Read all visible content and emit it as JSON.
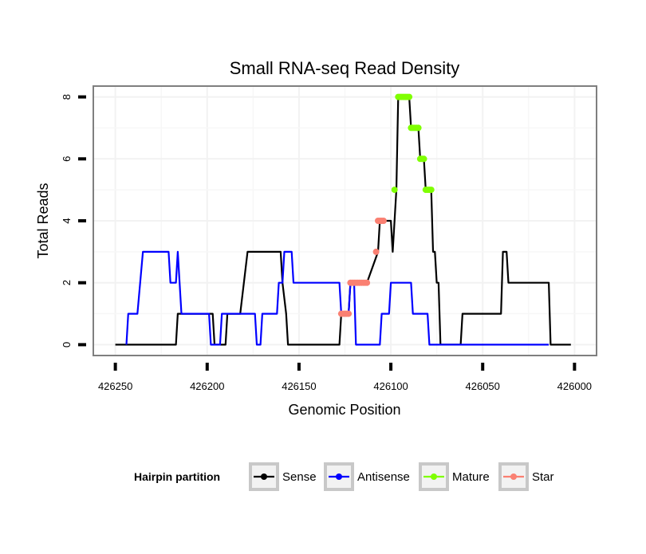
{
  "chart_data": {
    "type": "line",
    "title": "Small RNA-seq Read Density",
    "xlabel": "Genomic Position",
    "ylabel": "Total Reads",
    "x_reversed": true,
    "xlim": [
      426262,
      425988
    ],
    "ylim": [
      -0.35,
      8.35
    ],
    "xticks": [
      426250,
      426200,
      426150,
      426100,
      426050,
      426000
    ],
    "xtick_labels": [
      "426250",
      "426200",
      "426150",
      "426100",
      "426050",
      "426000"
    ],
    "yticks": [
      0,
      2,
      4,
      6,
      8
    ],
    "ytick_labels": [
      "0",
      "2",
      "4",
      "6",
      "8"
    ],
    "grid": true,
    "legend": {
      "title": "Hairpin partition",
      "placement": "bottom",
      "entries": [
        {
          "name": "Sense",
          "color": "#000000"
        },
        {
          "name": "Antisense",
          "color": "#0000ff"
        },
        {
          "name": "Mature",
          "color": "#7fff00"
        },
        {
          "name": "Star",
          "color": "#fa8072"
        }
      ]
    },
    "series": [
      {
        "name": "Sense",
        "color": "#000000",
        "style": "line",
        "points": [
          [
            426250,
            0
          ],
          [
            426217,
            0
          ],
          [
            426216,
            1
          ],
          [
            426197,
            1
          ],
          [
            426196,
            0
          ],
          [
            426190,
            0
          ],
          [
            426189,
            1
          ],
          [
            426182,
            1
          ],
          [
            426180,
            2
          ],
          [
            426178,
            3
          ],
          [
            426160,
            3
          ],
          [
            426159,
            2
          ],
          [
            426157,
            1
          ],
          [
            426156,
            0
          ],
          [
            426128,
            0
          ],
          [
            426127,
            1
          ],
          [
            426123,
            1
          ],
          [
            426122,
            2
          ],
          [
            426113,
            2
          ],
          [
            426107,
            3
          ],
          [
            426106,
            4
          ],
          [
            426100,
            4
          ],
          [
            426099,
            3
          ],
          [
            426097,
            5
          ],
          [
            426096,
            8
          ],
          [
            426090,
            8
          ],
          [
            426089,
            7
          ],
          [
            426085,
            7
          ],
          [
            426084,
            6
          ],
          [
            426082,
            6
          ],
          [
            426081,
            5
          ],
          [
            426078,
            5
          ],
          [
            426077,
            3
          ],
          [
            426076,
            3
          ],
          [
            426075,
            2
          ],
          [
            426074,
            2
          ],
          [
            426073,
            0
          ],
          [
            426062,
            0
          ],
          [
            426061,
            1
          ],
          [
            426040,
            1
          ],
          [
            426039,
            3
          ],
          [
            426037,
            3
          ],
          [
            426036,
            2
          ],
          [
            426014,
            2
          ],
          [
            426013,
            0
          ],
          [
            426002,
            0
          ]
        ]
      },
      {
        "name": "Antisense",
        "color": "#0000ff",
        "style": "line",
        "points": [
          [
            426244,
            0
          ],
          [
            426243,
            1
          ],
          [
            426238,
            1
          ],
          [
            426235,
            3
          ],
          [
            426221,
            3
          ],
          [
            426220,
            2
          ],
          [
            426217,
            2
          ],
          [
            426216,
            3
          ],
          [
            426214,
            1
          ],
          [
            426199,
            1
          ],
          [
            426198,
            0
          ],
          [
            426193,
            0
          ],
          [
            426192,
            1
          ],
          [
            426174,
            1
          ],
          [
            426173,
            0
          ],
          [
            426171,
            0
          ],
          [
            426170,
            1
          ],
          [
            426162,
            1
          ],
          [
            426161,
            2
          ],
          [
            426159,
            2
          ],
          [
            426158,
            3
          ],
          [
            426154,
            3
          ],
          [
            426153,
            2
          ],
          [
            426128,
            2
          ],
          [
            426127,
            1
          ],
          [
            426123,
            1
          ],
          [
            426122,
            2
          ],
          [
            426120,
            2
          ],
          [
            426119,
            0
          ],
          [
            426106,
            0
          ],
          [
            426105,
            1
          ],
          [
            426101,
            1
          ],
          [
            426100,
            2
          ],
          [
            426089,
            2
          ],
          [
            426088,
            1
          ],
          [
            426080,
            1
          ],
          [
            426079,
            0
          ],
          [
            426014,
            0
          ]
        ]
      },
      {
        "name": "Mature",
        "color": "#7fff00",
        "style": "points",
        "points": [
          [
            426096,
            8
          ],
          [
            426095,
            8
          ],
          [
            426094,
            8
          ],
          [
            426093,
            8
          ],
          [
            426092,
            8
          ],
          [
            426091,
            8
          ],
          [
            426090,
            8
          ],
          [
            426089,
            7
          ],
          [
            426088,
            7
          ],
          [
            426087,
            7
          ],
          [
            426086,
            7
          ],
          [
            426085,
            7
          ],
          [
            426084,
            6
          ],
          [
            426083,
            6
          ],
          [
            426082,
            6
          ],
          [
            426081,
            5
          ],
          [
            426080,
            5
          ],
          [
            426079,
            5
          ],
          [
            426078,
            5
          ],
          [
            426098,
            5
          ]
        ]
      },
      {
        "name": "Star",
        "color": "#fa8072",
        "style": "points",
        "points": [
          [
            426127,
            1
          ],
          [
            426126,
            1
          ],
          [
            426125,
            1
          ],
          [
            426124,
            1
          ],
          [
            426123,
            1
          ],
          [
            426122,
            2
          ],
          [
            426121,
            2
          ],
          [
            426120,
            2
          ],
          [
            426119,
            2
          ],
          [
            426118,
            2
          ],
          [
            426117,
            2
          ],
          [
            426116,
            2
          ],
          [
            426115,
            2
          ],
          [
            426114,
            2
          ],
          [
            426113,
            2
          ],
          [
            426108,
            3
          ],
          [
            426107,
            4
          ],
          [
            426106,
            4
          ],
          [
            426105,
            4
          ],
          [
            426104,
            4
          ]
        ]
      }
    ]
  }
}
